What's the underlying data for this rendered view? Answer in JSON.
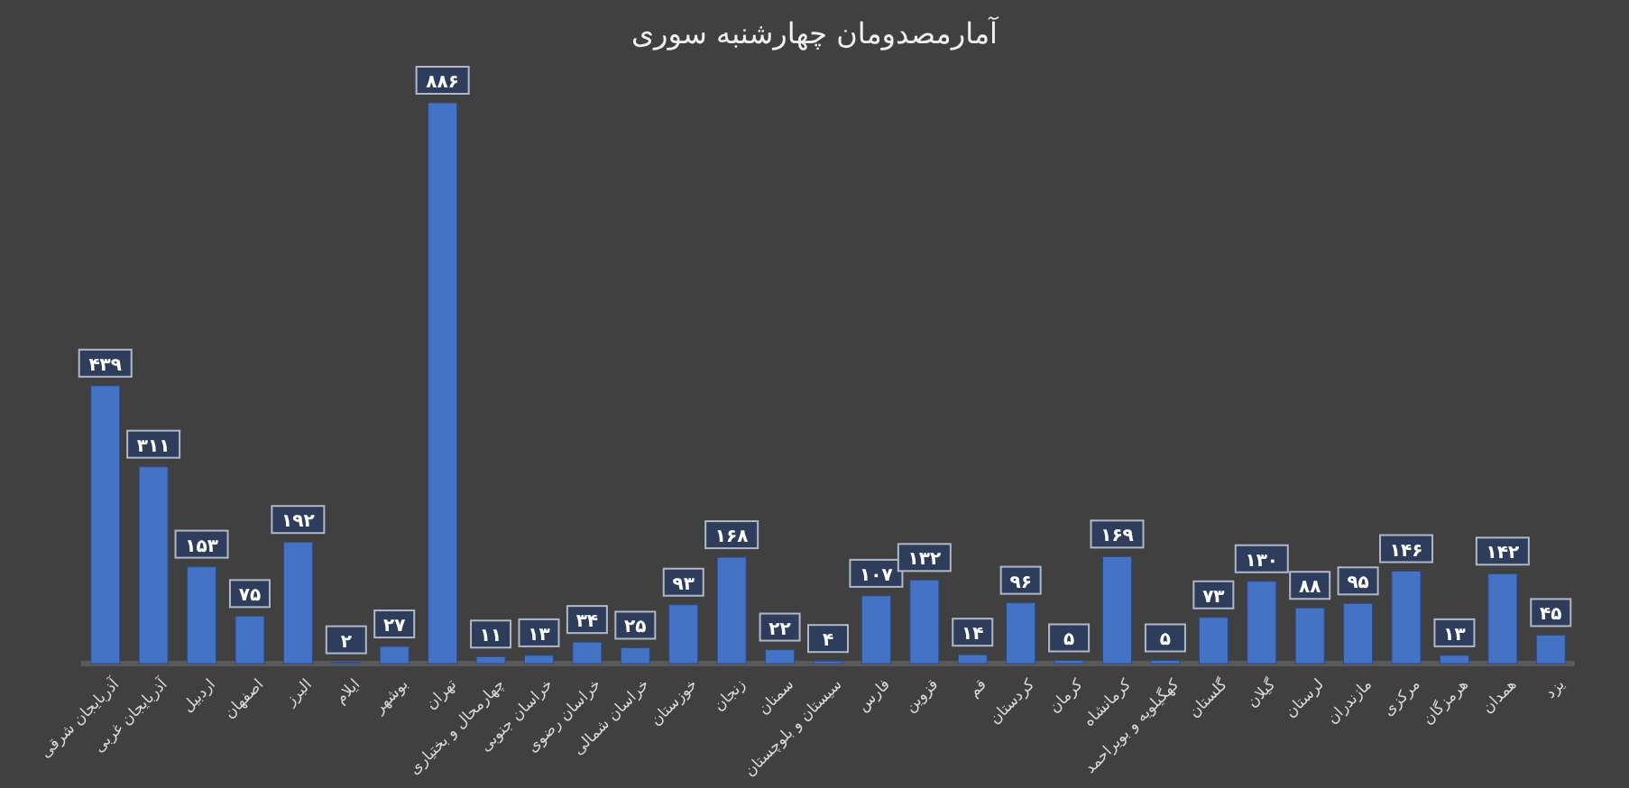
{
  "chart_data": {
    "type": "bar",
    "title": "آمارمصدومان چهارشنبه سوری",
    "categories": [
      "آذربایجان شرقی",
      "آذربایجان غربی",
      "اردبیل",
      "اصفهان",
      "البرز",
      "ایلام",
      "بوشهر",
      "تهران",
      "چهارمحال و بختیاری",
      "خراسان جنوبی",
      "خراسان رضوی",
      "خراسان شمالی",
      "خوزستان",
      "زنجان",
      "سمنان",
      "سیستان و بلوچستان",
      "فارس",
      "قزوین",
      "قم",
      "کردستان",
      "کرمان",
      "کرمانشاه",
      "کهگیلویه و بویراحمد",
      "گلستان",
      "گیلان",
      "لرستان",
      "مازندران",
      "مرکزی",
      "هرمزگان",
      "همدان",
      "یزد"
    ],
    "values": [
      439,
      311,
      153,
      75,
      192,
      2,
      27,
      886,
      11,
      13,
      34,
      25,
      93,
      168,
      22,
      4,
      107,
      132,
      14,
      96,
      5,
      169,
      5,
      73,
      130,
      88,
      95,
      146,
      13,
      142,
      45
    ],
    "value_labels": [
      "۴۳۹",
      "۳۱۱",
      "۱۵۳",
      "۷۵",
      "۱۹۲",
      "۲",
      "۲۷",
      "۸۸۶",
      "۱۱",
      "۱۳",
      "۳۴",
      "۲۵",
      "۹۳",
      "۱۶۸",
      "۲۲",
      "۴",
      "۱۰۷",
      "۱۳۲",
      "۱۴",
      "۹۶",
      "۵",
      "۱۶۹",
      "۵",
      "۷۳",
      "۱۳۰",
      "۸۸",
      "۹۵",
      "۱۴۶",
      "۱۳",
      "۱۴۲",
      "۴۵"
    ],
    "color": "#4472c4"
  }
}
